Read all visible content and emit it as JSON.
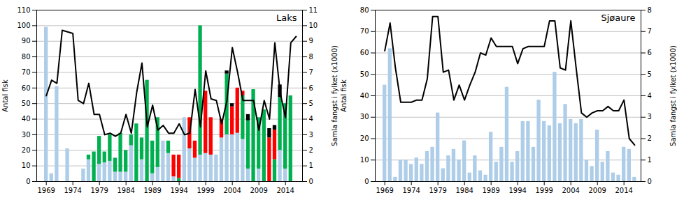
{
  "chart_data": [
    {
      "type": "bar",
      "title": "Laks",
      "stacked": true,
      "grid": true,
      "x": [
        1969,
        1970,
        1971,
        1972,
        1973,
        1974,
        1975,
        1976,
        1977,
        1978,
        1979,
        1980,
        1981,
        1982,
        1983,
        1984,
        1985,
        1986,
        1987,
        1988,
        1989,
        1990,
        1991,
        1992,
        1993,
        1994,
        1995,
        1996,
        1997,
        1998,
        1999,
        2000,
        2001,
        2002,
        2003,
        2004,
        2005,
        2006,
        2007,
        2008,
        2009,
        2010,
        2011,
        2012,
        2013,
        2014,
        2015,
        2016
      ],
      "xlim": [
        1967.2,
        2017.2
      ],
      "xticks": [
        1969,
        1974,
        1979,
        1984,
        1989,
        1994,
        1999,
        2004,
        2009,
        2014
      ],
      "ylabel": "Antal fisk",
      "ylim": [
        0,
        110
      ],
      "yticks": [
        0,
        10,
        20,
        30,
        40,
        50,
        60,
        70,
        80,
        90,
        100,
        110
      ],
      "y2label": "Samla fangst i fylket (x1000)",
      "y2lim": [
        0,
        11
      ],
      "y2ticks": [
        0,
        1,
        2,
        3,
        4,
        5,
        6,
        7,
        8,
        9,
        10,
        11
      ],
      "series": [
        {
          "type": "bar",
          "color": "#aecde8",
          "values": [
            99,
            5,
            61,
            0,
            21,
            0,
            0,
            8,
            14,
            0,
            11,
            12,
            13,
            6,
            6,
            6,
            23,
            0,
            14,
            0,
            5,
            9,
            26,
            18,
            3,
            0,
            41,
            21,
            15,
            17,
            18,
            17,
            17,
            28,
            30,
            30,
            31,
            27,
            8,
            0,
            8,
            0,
            0,
            0,
            20,
            8,
            0,
            0
          ]
        },
        {
          "type": "bar",
          "color": "#00b050",
          "values": [
            0,
            0,
            0,
            0,
            0,
            0,
            0,
            0,
            3,
            19,
            18,
            7,
            17,
            9,
            25,
            14,
            7,
            37,
            14,
            65,
            21,
            32,
            0,
            8,
            0,
            2,
            0,
            0,
            0,
            83,
            0,
            0,
            0,
            0,
            39,
            0,
            0,
            28,
            31,
            59,
            33,
            46,
            0,
            14,
            34,
            42,
            55,
            0
          ]
        },
        {
          "type": "bar",
          "color": "#ff0000",
          "values": [
            0,
            0,
            0,
            0,
            0,
            0,
            0,
            0,
            0,
            0,
            0,
            0,
            0,
            0,
            0,
            0,
            0,
            0,
            0,
            0,
            0,
            0,
            0,
            0,
            14,
            15,
            0,
            20,
            11,
            0,
            40,
            24,
            0,
            12,
            0,
            18,
            29,
            3,
            0,
            0,
            0,
            0,
            28,
            19,
            0,
            0,
            0,
            0
          ]
        },
        {
          "type": "bar",
          "color": "#000000",
          "values": [
            0,
            0,
            0,
            0,
            0,
            0,
            0,
            0,
            0,
            0,
            0,
            0,
            0,
            0,
            0,
            0,
            0,
            0,
            0,
            0,
            0,
            0,
            0,
            0,
            0,
            0,
            0,
            0,
            0,
            0,
            0,
            0,
            0,
            0,
            2,
            2,
            0,
            0,
            4,
            0,
            0,
            0,
            6,
            3,
            8,
            0,
            0,
            0
          ]
        },
        {
          "type": "line",
          "axis": "y2",
          "color": "#000000",
          "values": [
            5.5,
            6.5,
            6.3,
            9.7,
            9.6,
            9.5,
            5.2,
            5.0,
            6.3,
            4.3,
            4.3,
            3.0,
            3.1,
            2.9,
            3.1,
            4.3,
            3.1,
            5.7,
            7.6,
            3.5,
            4.9,
            3.3,
            3.6,
            3.1,
            3.1,
            3.7,
            3.0,
            3.1,
            5.9,
            3.5,
            7.1,
            5.3,
            5.2,
            3.7,
            5.2,
            8.6,
            7.0,
            5.2,
            5.2,
            5.2,
            3.3,
            5.2,
            4.0,
            8.9,
            5.7,
            4.1,
            8.9,
            9.3
          ]
        }
      ]
    },
    {
      "type": "bar",
      "title": "Sjøaure",
      "grid": true,
      "x": [
        1969,
        1970,
        1971,
        1972,
        1973,
        1974,
        1975,
        1976,
        1977,
        1978,
        1979,
        1980,
        1981,
        1982,
        1983,
        1984,
        1985,
        1986,
        1987,
        1988,
        1989,
        1990,
        1991,
        1992,
        1993,
        1994,
        1995,
        1996,
        1997,
        1998,
        1999,
        2000,
        2001,
        2002,
        2003,
        2004,
        2005,
        2006,
        2007,
        2008,
        2009,
        2010,
        2011,
        2012,
        2013,
        2014,
        2015,
        2016
      ],
      "xlim": [
        1967.2,
        2017.2
      ],
      "xticks": [
        1969,
        1974,
        1979,
        1984,
        1989,
        1994,
        1999,
        2004,
        2009,
        2014
      ],
      "ylabel": "Antal fisk",
      "ylim": [
        0,
        80
      ],
      "yticks": [
        0,
        10,
        20,
        30,
        40,
        50,
        60,
        70,
        80
      ],
      "y2label": "Samla fangst i fylket (x1000)",
      "y2lim": [
        0,
        8
      ],
      "y2ticks": [
        0,
        1,
        2,
        3,
        4,
        5,
        6,
        7,
        8
      ],
      "series": [
        {
          "type": "bar",
          "color": "#aecde8",
          "values": [
            45,
            62,
            2,
            10,
            10,
            8,
            11,
            8,
            14,
            16,
            32,
            6,
            12,
            15,
            10,
            19,
            4,
            12,
            5,
            3,
            23,
            9,
            16,
            44,
            9,
            14,
            28,
            28,
            16,
            38,
            28,
            26,
            51,
            27,
            36,
            29,
            27,
            29,
            10,
            7,
            24,
            9,
            14,
            4,
            3,
            16,
            15,
            2
          ]
        },
        {
          "type": "line",
          "axis": "y2",
          "color": "#000000",
          "values": [
            6.1,
            7.4,
            5.3,
            3.7,
            3.7,
            3.7,
            3.8,
            3.8,
            4.8,
            7.7,
            7.7,
            5.1,
            5.2,
            3.8,
            4.5,
            3.8,
            4.5,
            5.1,
            6.0,
            5.9,
            6.7,
            6.3,
            6.3,
            6.3,
            6.3,
            5.5,
            6.2,
            6.3,
            6.3,
            6.3,
            6.3,
            7.5,
            7.5,
            5.3,
            5.2,
            7.5,
            5.3,
            3.2,
            3.0,
            3.2,
            3.3,
            3.3,
            3.5,
            3.3,
            3.3,
            3.8,
            2.0,
            1.7
          ]
        }
      ]
    }
  ]
}
